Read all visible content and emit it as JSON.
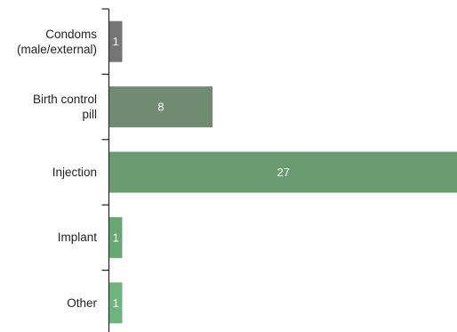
{
  "chart_data": {
    "type": "bar",
    "orientation": "horizontal",
    "categories": [
      [
        "Condoms",
        "(male/external)"
      ],
      [
        "Birth control",
        "pill"
      ],
      [
        "Injection"
      ],
      [
        "Implant"
      ],
      [
        "Other"
      ]
    ],
    "values": [
      1,
      8,
      27,
      1,
      1
    ],
    "data_labels": [
      "1",
      "8",
      "27",
      "1",
      "1"
    ],
    "bar_colors": [
      "#757575",
      "#6f8c72",
      "#6a9b70",
      "#69a773",
      "#6db57c"
    ],
    "data_label_color": "#ffffff",
    "axis_color": "#222222",
    "title": "",
    "xlabel": "",
    "ylabel": "",
    "xlim": [
      0,
      27
    ],
    "grid": false,
    "legend": "none"
  }
}
